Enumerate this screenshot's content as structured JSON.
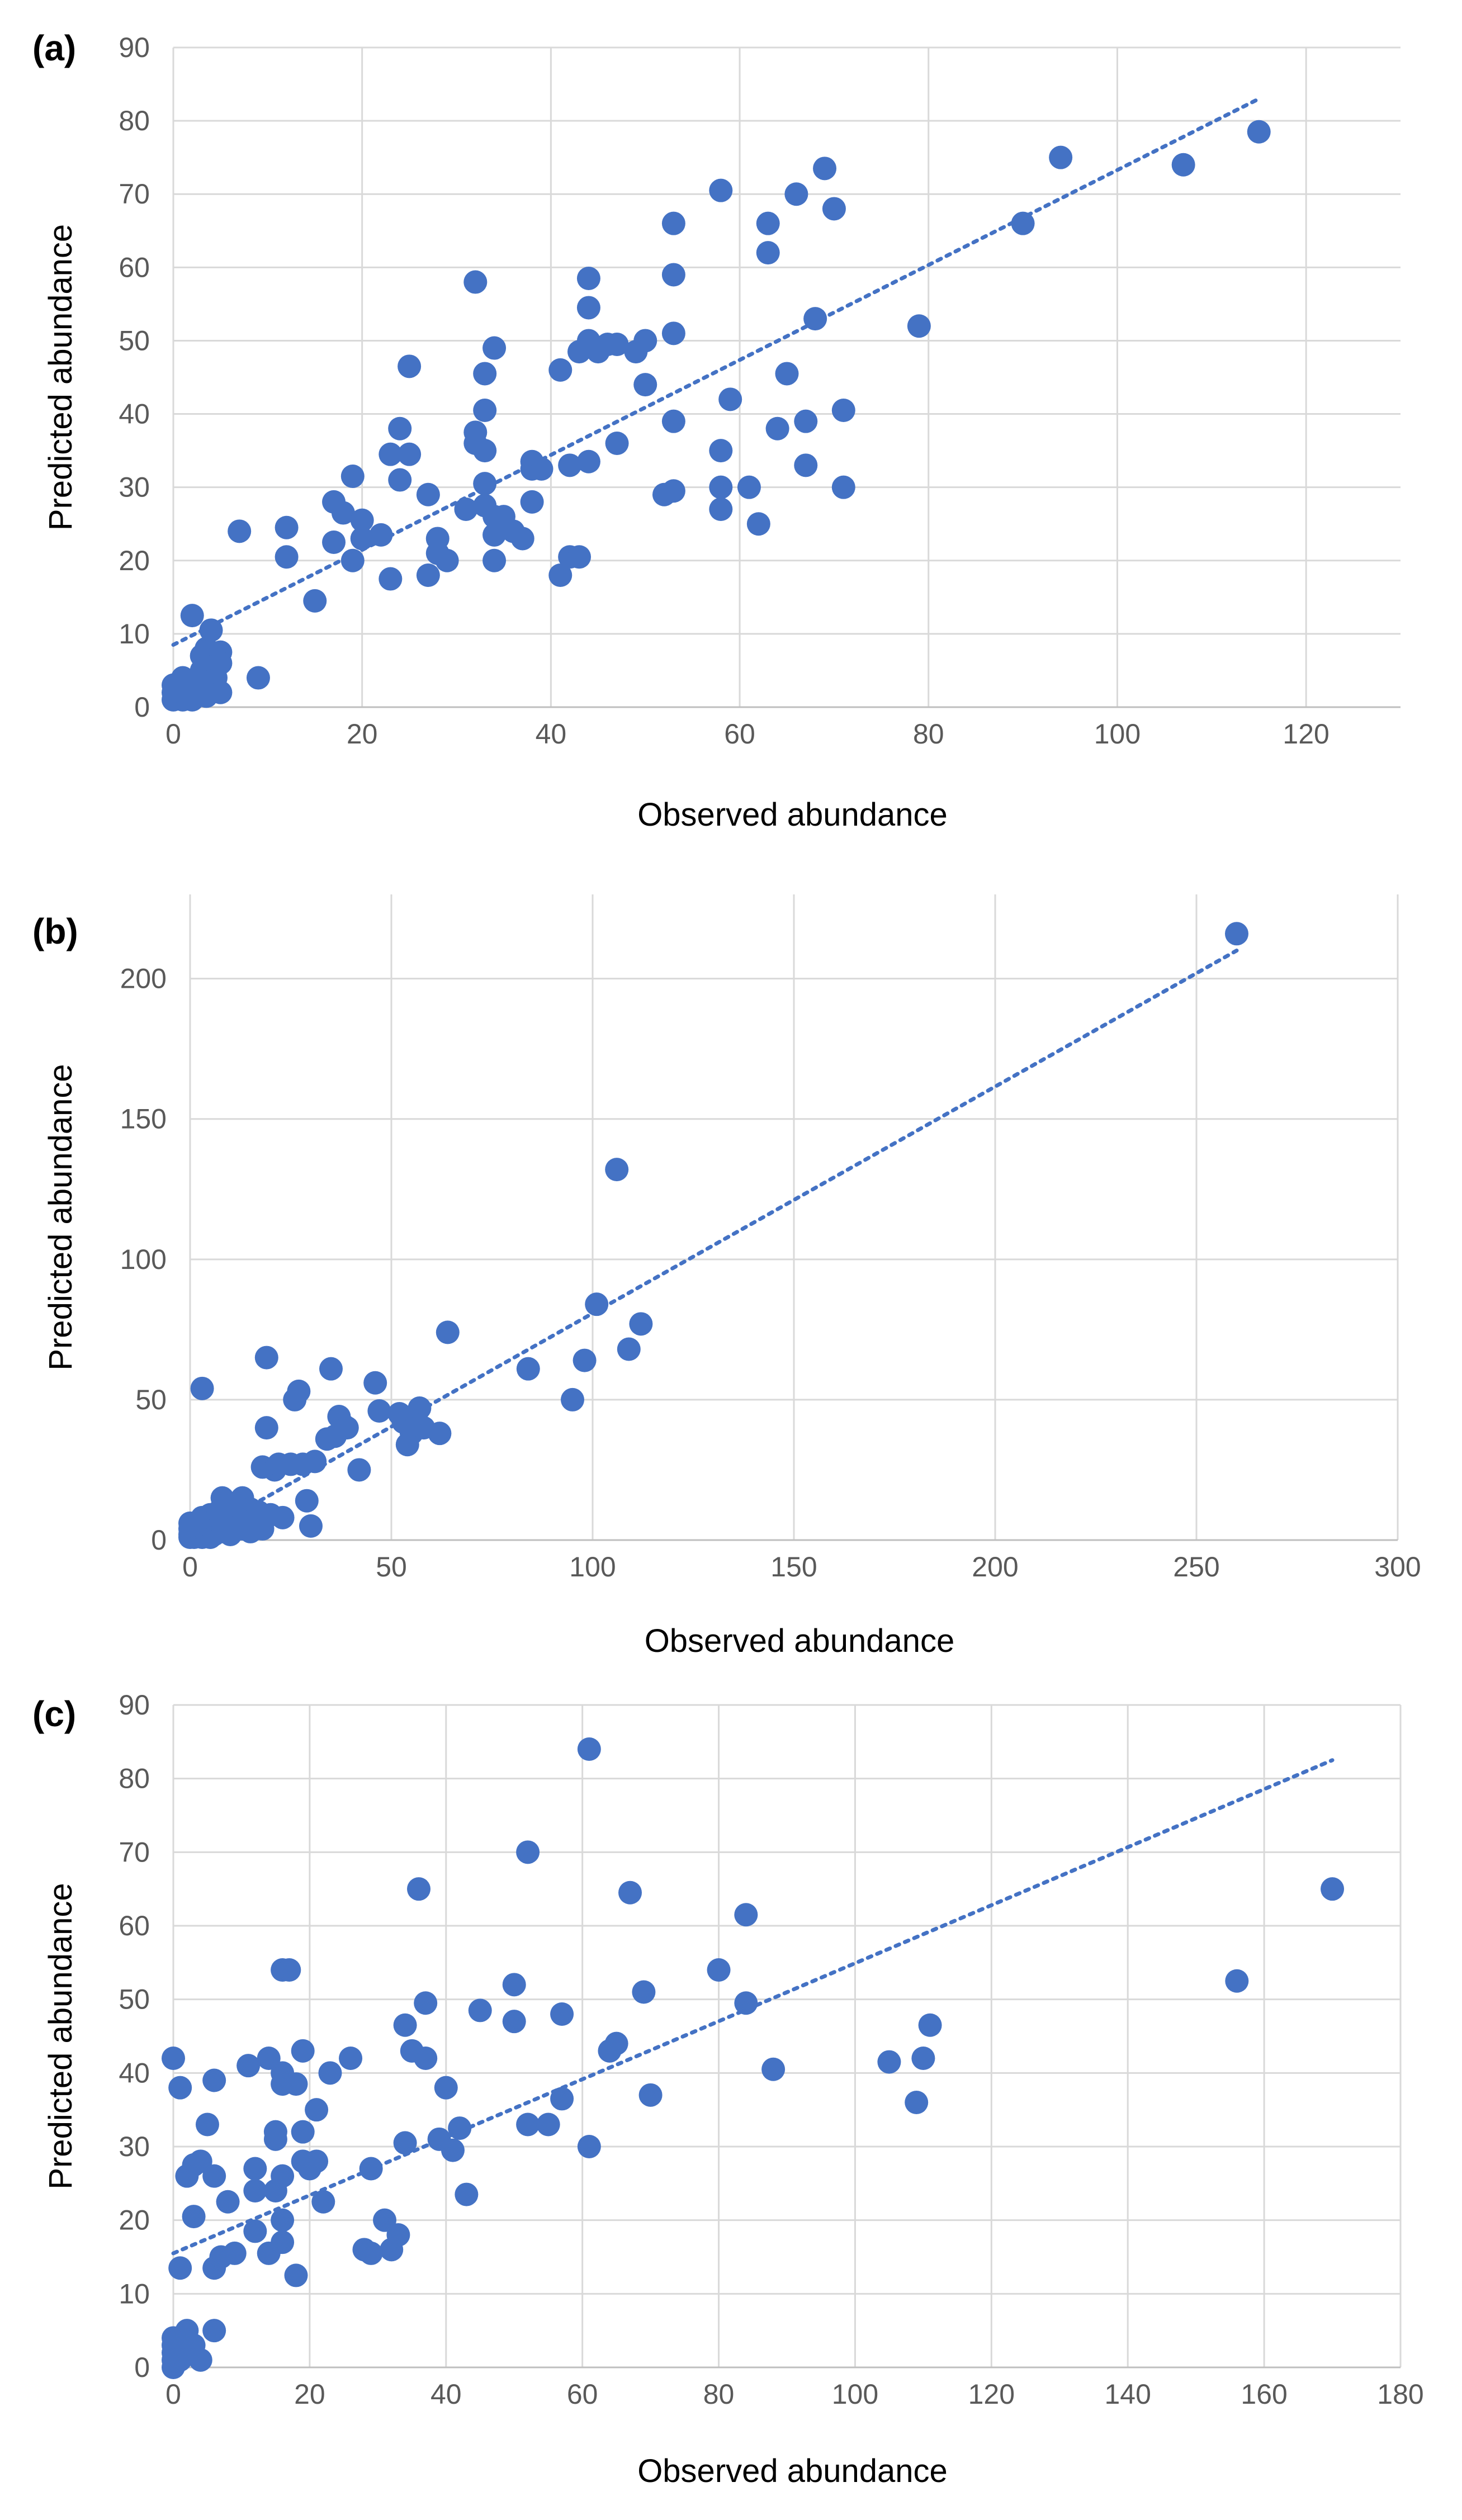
{
  "colors": {
    "marker": "#4472c4",
    "trend": "#4472c4"
  },
  "chart_data": [
    {
      "panel_label": "(a)",
      "type": "scatter",
      "xlabel": "Observed abundance",
      "ylabel": "Predicted abundance",
      "xlim": [
        0,
        130
      ],
      "ylim": [
        0,
        90
      ],
      "xticks": [
        "0",
        "20",
        "40",
        "60",
        "80",
        "100",
        "120"
      ],
      "yticks": [
        "0",
        "10",
        "20",
        "30",
        "40",
        "50",
        "60",
        "70",
        "80",
        "90"
      ],
      "trendline": {
        "style": "dotted",
        "x": [
          0,
          115
        ],
        "y": [
          8.5,
          83
        ]
      },
      "points": [
        [
          0,
          1
        ],
        [
          0,
          2
        ],
        [
          0,
          3
        ],
        [
          1,
          1
        ],
        [
          1,
          2
        ],
        [
          1,
          4
        ],
        [
          1.5,
          3
        ],
        [
          2,
          1
        ],
        [
          2,
          2
        ],
        [
          2,
          3.5
        ],
        [
          2,
          12.5
        ],
        [
          2.5,
          2
        ],
        [
          3,
          3
        ],
        [
          3,
          5
        ],
        [
          3,
          7
        ],
        [
          3.5,
          8
        ],
        [
          3.5,
          1.5
        ],
        [
          4,
          6
        ],
        [
          4,
          10.5
        ],
        [
          4.5,
          4
        ],
        [
          5,
          7.5
        ],
        [
          5,
          6
        ],
        [
          5,
          2
        ],
        [
          9,
          4
        ],
        [
          7,
          24
        ],
        [
          12,
          24.5
        ],
        [
          12,
          20.5
        ],
        [
          15,
          14.5
        ],
        [
          17,
          28
        ],
        [
          17,
          22.5
        ],
        [
          18,
          26.5
        ],
        [
          19,
          31.5
        ],
        [
          19,
          20
        ],
        [
          20,
          25.5
        ],
        [
          20,
          23
        ],
        [
          22,
          23.5
        ],
        [
          23,
          17.5
        ],
        [
          23,
          34.5
        ],
        [
          24,
          38
        ],
        [
          24,
          31
        ],
        [
          25,
          46.5
        ],
        [
          25,
          34.5
        ],
        [
          27,
          18
        ],
        [
          27,
          29
        ],
        [
          28,
          23
        ],
        [
          28,
          21
        ],
        [
          29,
          20
        ],
        [
          31,
          27
        ],
        [
          32,
          58
        ],
        [
          32,
          37.5
        ],
        [
          32,
          36
        ],
        [
          33,
          45.5
        ],
        [
          33,
          40.5
        ],
        [
          33,
          35
        ],
        [
          33,
          30.5
        ],
        [
          33,
          27.5
        ],
        [
          34,
          49
        ],
        [
          34,
          26
        ],
        [
          34,
          23.5
        ],
        [
          34,
          20
        ],
        [
          35,
          26
        ],
        [
          36,
          24
        ],
        [
          37,
          23
        ],
        [
          38,
          33.5
        ],
        [
          38,
          28
        ],
        [
          38,
          32.5
        ],
        [
          39,
          32.5
        ],
        [
          41,
          46
        ],
        [
          41,
          18
        ],
        [
          42,
          33
        ],
        [
          42,
          20.5
        ],
        [
          43,
          20.5
        ],
        [
          43,
          48.5
        ],
        [
          44,
          58.5
        ],
        [
          44,
          54.5
        ],
        [
          44,
          50
        ],
        [
          44,
          33.5
        ],
        [
          45,
          48.5
        ],
        [
          46,
          49.5
        ],
        [
          47,
          49.5
        ],
        [
          47,
          36
        ],
        [
          49,
          48.5
        ],
        [
          50,
          50
        ],
        [
          50,
          44
        ],
        [
          52,
          29
        ],
        [
          53,
          66
        ],
        [
          53,
          59
        ],
        [
          53,
          51
        ],
        [
          53,
          39
        ],
        [
          53,
          29.5
        ],
        [
          58,
          70.5
        ],
        [
          58,
          35
        ],
        [
          58,
          30
        ],
        [
          58,
          27
        ],
        [
          59,
          42
        ],
        [
          61,
          30
        ],
        [
          62,
          25
        ],
        [
          63,
          66
        ],
        [
          63,
          62
        ],
        [
          64,
          38
        ],
        [
          65,
          45.5
        ],
        [
          66,
          70
        ],
        [
          67,
          39
        ],
        [
          67,
          33
        ],
        [
          68,
          53
        ],
        [
          69,
          73.5
        ],
        [
          70,
          68
        ],
        [
          71,
          40.5
        ],
        [
          71,
          30
        ],
        [
          79,
          52
        ],
        [
          90,
          66
        ],
        [
          94,
          75
        ],
        [
          107,
          74
        ],
        [
          115,
          78.5
        ]
      ]
    },
    {
      "panel_label": "(b)",
      "type": "scatter",
      "xlabel": "Observed abundance",
      "ylabel": "Predicted abundance",
      "xlim": [
        0,
        300
      ],
      "ylim": [
        0,
        230
      ],
      "xticks": [
        "0",
        "50",
        "100",
        "150",
        "200",
        "250",
        "300"
      ],
      "yticks": [
        "0",
        "50",
        "100",
        "150",
        "200"
      ],
      "trendline": {
        "style": "dotted",
        "x": [
          0,
          260
        ],
        "y": [
          0,
          210
        ]
      },
      "points": [
        [
          0,
          1
        ],
        [
          0,
          2
        ],
        [
          0,
          4
        ],
        [
          0,
          6
        ],
        [
          1,
          1
        ],
        [
          1,
          3
        ],
        [
          2,
          2
        ],
        [
          2,
          5
        ],
        [
          3,
          1
        ],
        [
          3,
          4
        ],
        [
          3,
          8
        ],
        [
          4,
          3
        ],
        [
          4,
          6
        ],
        [
          5,
          1
        ],
        [
          5,
          5
        ],
        [
          5,
          9
        ],
        [
          6,
          2
        ],
        [
          6,
          7
        ],
        [
          7,
          4
        ],
        [
          7,
          10
        ],
        [
          8,
          3
        ],
        [
          8,
          15
        ],
        [
          9,
          7
        ],
        [
          10,
          2
        ],
        [
          10,
          12
        ],
        [
          11,
          5
        ],
        [
          12,
          9
        ],
        [
          13,
          4
        ],
        [
          13,
          15
        ],
        [
          14,
          8
        ],
        [
          15,
          3
        ],
        [
          15,
          11
        ],
        [
          16,
          7
        ],
        [
          17,
          10
        ],
        [
          18,
          4
        ],
        [
          18,
          26
        ],
        [
          19,
          40
        ],
        [
          19,
          65
        ],
        [
          20,
          9
        ],
        [
          21,
          25
        ],
        [
          22,
          27
        ],
        [
          23,
          8
        ],
        [
          25,
          27
        ],
        [
          26,
          50
        ],
        [
          27,
          53
        ],
        [
          28,
          27
        ],
        [
          29,
          14
        ],
        [
          30,
          5
        ],
        [
          31,
          28
        ],
        [
          34,
          36
        ],
        [
          35,
          61
        ],
        [
          36,
          37
        ],
        [
          37,
          44
        ],
        [
          38,
          41
        ],
        [
          39,
          40
        ],
        [
          42,
          25
        ],
        [
          46,
          56
        ],
        [
          47,
          46
        ],
        [
          52,
          45
        ],
        [
          53,
          42
        ],
        [
          54,
          34
        ],
        [
          55,
          38
        ],
        [
          56,
          43
        ],
        [
          57,
          47
        ],
        [
          58,
          40
        ],
        [
          62,
          38
        ],
        [
          64,
          74
        ],
        [
          84,
          61
        ],
        [
          95,
          50
        ],
        [
          98,
          64
        ],
        [
          101,
          84
        ],
        [
          106,
          132
        ],
        [
          109,
          68
        ],
        [
          112,
          77
        ],
        [
          260,
          216
        ],
        [
          3,
          54
        ]
      ]
    },
    {
      "panel_label": "(c)",
      "type": "scatter",
      "xlabel": "Observed abundance",
      "ylabel": "Predicted abundance",
      "xlim": [
        0,
        180
      ],
      "ylim": [
        0,
        90
      ],
      "xticks": [
        "0",
        "20",
        "40",
        "60",
        "80",
        "100",
        "120",
        "140",
        "160",
        "180"
      ],
      "yticks": [
        "0",
        "10",
        "20",
        "30",
        "40",
        "50",
        "60",
        "70",
        "80",
        "90"
      ],
      "trendline": {
        "style": "dotted",
        "x": [
          0,
          170
        ],
        "y": [
          15.5,
          82.5
        ]
      },
      "points": [
        [
          0,
          42
        ],
        [
          0,
          0
        ],
        [
          0,
          1
        ],
        [
          0,
          2
        ],
        [
          0,
          3
        ],
        [
          0,
          4
        ],
        [
          1,
          1
        ],
        [
          1,
          2
        ],
        [
          1,
          38
        ],
        [
          1,
          13.5
        ],
        [
          2,
          5
        ],
        [
          2,
          26
        ],
        [
          3,
          27.5
        ],
        [
          3,
          20.5
        ],
        [
          3,
          3
        ],
        [
          4,
          28
        ],
        [
          4,
          1
        ],
        [
          5,
          33
        ],
        [
          6,
          39
        ],
        [
          6,
          26
        ],
        [
          6,
          5
        ],
        [
          6,
          13.5
        ],
        [
          7,
          15
        ],
        [
          8,
          22.5
        ],
        [
          9,
          15.5
        ],
        [
          11,
          41
        ],
        [
          12,
          24
        ],
        [
          12,
          27
        ],
        [
          12,
          18.5
        ],
        [
          14,
          42
        ],
        [
          14,
          15.5
        ],
        [
          15,
          31
        ],
        [
          15,
          32
        ],
        [
          15,
          24
        ],
        [
          16,
          54
        ],
        [
          16,
          40
        ],
        [
          16,
          38.5
        ],
        [
          16,
          26
        ],
        [
          16,
          20
        ],
        [
          16,
          17
        ],
        [
          17,
          54
        ],
        [
          18,
          12.5
        ],
        [
          18,
          38.5
        ],
        [
          19,
          43
        ],
        [
          19,
          32
        ],
        [
          19,
          28
        ],
        [
          20,
          27
        ],
        [
          21,
          35
        ],
        [
          21,
          28
        ],
        [
          22,
          22.5
        ],
        [
          23,
          40
        ],
        [
          26,
          42
        ],
        [
          28,
          16
        ],
        [
          29,
          27
        ],
        [
          29,
          15.5
        ],
        [
          31,
          20
        ],
        [
          32,
          16
        ],
        [
          33,
          18
        ],
        [
          34,
          46.5
        ],
        [
          34,
          30.5
        ],
        [
          35,
          43
        ],
        [
          36,
          65
        ],
        [
          37,
          49.5
        ],
        [
          37,
          42
        ],
        [
          39,
          31
        ],
        [
          40,
          38
        ],
        [
          41,
          29.5
        ],
        [
          42,
          32.5
        ],
        [
          43,
          23.5
        ],
        [
          45,
          48.5
        ],
        [
          50,
          52
        ],
        [
          50,
          47
        ],
        [
          52,
          70
        ],
        [
          52,
          33
        ],
        [
          55,
          33
        ],
        [
          57,
          48
        ],
        [
          57,
          36.5
        ],
        [
          61,
          84
        ],
        [
          61,
          30
        ],
        [
          64,
          43
        ],
        [
          65,
          44
        ],
        [
          67,
          64.5
        ],
        [
          69,
          51
        ],
        [
          70,
          37
        ],
        [
          80,
          54
        ],
        [
          84,
          61.5
        ],
        [
          84,
          49.5
        ],
        [
          88,
          40.5
        ],
        [
          105,
          41.5
        ],
        [
          109,
          36
        ],
        [
          110,
          42
        ],
        [
          111,
          46.5
        ],
        [
          156,
          52.5
        ],
        [
          170,
          65
        ]
      ]
    }
  ]
}
